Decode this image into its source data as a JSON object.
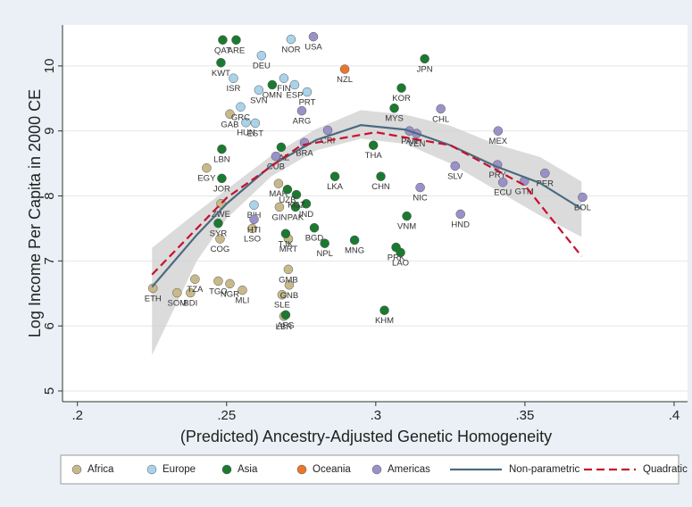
{
  "chart_data": {
    "type": "scatter",
    "xlabel": "(Predicted) Ancestry-Adjusted Genetic Homogeneity",
    "ylabel": "Log Income Per Capita in 2000 CE",
    "xlim": [
      0.195,
      0.4045
    ],
    "ylim": [
      4.835,
      10.63
    ],
    "xticks": [
      {
        "value": 0.2,
        "label": ".2"
      },
      {
        "value": 0.25,
        "label": ".25"
      },
      {
        "value": 0.3,
        "label": ".3"
      },
      {
        "value": 0.35,
        "label": ".35"
      },
      {
        "value": 0.4,
        "label": ".4"
      }
    ],
    "yticks": [
      5,
      6,
      7,
      8,
      9,
      10
    ],
    "grid": true,
    "series": [
      {
        "name": "Africa",
        "color": "#c8b98a",
        "labels": [
          "ETH",
          "SOM",
          "BDI",
          "TZA",
          "EGY",
          "GAB",
          "COG",
          "LBR",
          "SLE",
          "GNB",
          "GMB",
          "NGR",
          "TGO",
          "MLI",
          "MRT",
          "GIN",
          "MAR",
          "LSO",
          "ZWE"
        ],
        "x": [
          0.2253,
          0.2334,
          0.2379,
          0.2394,
          0.2433,
          0.2511,
          0.2478,
          0.2692,
          0.2686,
          0.271,
          0.2707,
          0.2511,
          0.2472,
          0.2553,
          0.2707,
          0.2677,
          0.2674,
          0.2586,
          0.2481
        ],
        "y": [
          6.58,
          6.51,
          6.51,
          6.72,
          8.43,
          9.26,
          7.34,
          6.15,
          6.48,
          6.63,
          6.87,
          6.65,
          6.69,
          6.55,
          7.34,
          7.83,
          8.19,
          7.5,
          7.88
        ]
      },
      {
        "name": "Europe",
        "color": "#a9d3ea",
        "labels": [
          "NOR",
          "ESP",
          "PRT",
          "FIN",
          "ISR",
          "SVN",
          "HUN",
          "EST",
          "GRC",
          "BIH",
          "DEU"
        ],
        "x": [
          0.2716,
          0.2728,
          0.277,
          0.2692,
          0.2523,
          0.2608,
          0.2565,
          0.2596,
          0.2547,
          0.2592,
          0.2617
        ],
        "y": [
          10.41,
          9.71,
          9.6,
          9.81,
          9.81,
          9.63,
          9.13,
          9.12,
          9.37,
          7.86,
          10.16
        ]
      },
      {
        "name": "Asia",
        "color": "#1b7a2f",
        "labels": [
          "QAT",
          "ARE",
          "KWT",
          "OMN",
          "JPN",
          "KOR",
          "MYS",
          "THA",
          "CHN",
          "LKA",
          "IND",
          "PAK",
          "BGD",
          "NPL",
          "MNG",
          "VNM",
          "PRK",
          "LAO",
          "KHM",
          "AFG",
          "TJK",
          "KGZ",
          "UZB",
          "LBN",
          "JOR",
          "SYR",
          "KAZ"
        ],
        "x": [
          0.2487,
          0.2532,
          0.2481,
          0.2653,
          0.3164,
          0.3086,
          0.3062,
          0.2992,
          0.3017,
          0.2863,
          0.2767,
          0.2731,
          0.2794,
          0.2829,
          0.2929,
          0.3104,
          0.3068,
          0.3083,
          0.3029,
          0.2698,
          0.2698,
          0.2734,
          0.2704,
          0.2484,
          0.2484,
          0.2472,
          0.2683
        ],
        "y": [
          10.4,
          10.4,
          10.05,
          9.71,
          10.11,
          9.66,
          9.35,
          8.78,
          8.3,
          8.3,
          7.88,
          7.83,
          7.51,
          7.27,
          7.32,
          7.69,
          7.21,
          7.13,
          6.24,
          6.17,
          7.42,
          8.02,
          8.1,
          8.72,
          8.27,
          7.58,
          8.75
        ]
      },
      {
        "name": "Oceania",
        "color": "#e8772a",
        "labels": [
          "NZL"
        ],
        "x": [
          0.2896
        ],
        "y": [
          9.95
        ]
      },
      {
        "name": "Americas",
        "color": "#9b91c9",
        "labels": [
          "USA",
          "MEX",
          "CHL",
          "ARG",
          "CRI",
          "BRA",
          "VEN",
          "PAN",
          "ECU",
          "PER",
          "GTM",
          "SLV",
          "HND",
          "NIC",
          "BOL",
          "PRY",
          "CUB",
          "HTI"
        ],
        "x": [
          0.2791,
          0.341,
          0.3218,
          0.2752,
          0.2839,
          0.2761,
          0.3137,
          0.3113,
          0.3426,
          0.3567,
          0.3498,
          0.3266,
          0.3284,
          0.3149,
          0.3693,
          0.3408,
          0.2665,
          0.2592
        ],
        "y": [
          10.45,
          9.0,
          9.34,
          9.31,
          9.01,
          8.82,
          8.96,
          9.0,
          8.21,
          8.35,
          8.23,
          8.46,
          7.72,
          8.13,
          7.98,
          8.48,
          8.61,
          7.64
        ]
      }
    ],
    "fits": [
      {
        "name": "Non-parametric",
        "color": "#4a6b80",
        "style": "solid",
        "x": [
          0.225,
          0.24,
          0.25,
          0.265,
          0.28,
          0.295,
          0.31,
          0.325,
          0.34,
          0.355,
          0.369
        ],
        "y": [
          6.6,
          7.4,
          7.88,
          8.47,
          8.86,
          9.09,
          9.02,
          8.78,
          8.46,
          8.2,
          7.8
        ],
        "lower": [
          5.55,
          7.0,
          7.65,
          8.3,
          8.7,
          8.88,
          8.8,
          8.5,
          8.1,
          7.7,
          7.37
        ],
        "upper": [
          7.2,
          7.75,
          8.1,
          8.62,
          9.03,
          9.32,
          9.25,
          9.08,
          8.8,
          8.6,
          8.22
        ]
      },
      {
        "name": "Quadratic",
        "color": "#c8102e",
        "style": "dashed",
        "x": [
          0.225,
          0.25,
          0.275,
          0.3,
          0.325,
          0.35,
          0.369
        ],
        "y": [
          6.79,
          7.97,
          8.78,
          8.98,
          8.78,
          8.16,
          7.07
        ]
      }
    ]
  }
}
